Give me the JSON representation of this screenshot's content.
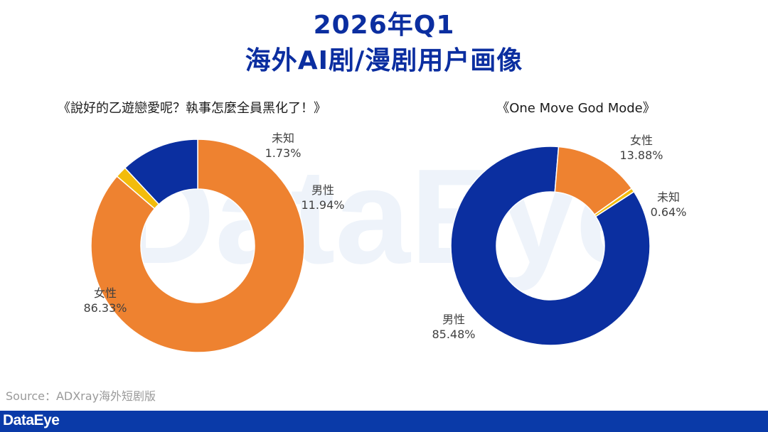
{
  "header": {
    "title_line1": "2026年Q1",
    "title_line2": "海外AI剧/漫剧用户画像"
  },
  "source_text": "Source：ADXray海外短剧版",
  "footer": {
    "logo": "DataEye",
    "color": "#0a3aa8"
  },
  "watermark": "DataEye",
  "colors": {
    "female": "#ee8230",
    "male": "#0b2fa0",
    "unknown": "#f3bc0b",
    "title": "#0b2ea0"
  },
  "chart_data": [
    {
      "type": "pie",
      "title": "《說好的乙遊戀愛呢？執事怎麼全員黑化了！》",
      "donut": true,
      "slices": [
        {
          "label": "女性",
          "value": 86.33,
          "value_label": "86.33%",
          "color": "#ee8230"
        },
        {
          "label": "未知",
          "value": 1.73,
          "value_label": "1.73%",
          "color": "#f3bc0b"
        },
        {
          "label": "男性",
          "value": 11.94,
          "value_label": "11.94%",
          "color": "#0b2fa0"
        }
      ]
    },
    {
      "type": "pie",
      "title": "《One Move God Mode》",
      "donut": true,
      "slices": [
        {
          "label": "男性",
          "value": 85.48,
          "value_label": "85.48%",
          "color": "#0b2fa0"
        },
        {
          "label": "女性",
          "value": 13.88,
          "value_label": "13.88%",
          "color": "#ee8230"
        },
        {
          "label": "未知",
          "value": 0.64,
          "value_label": "0.64%",
          "color": "#f3bc0b"
        }
      ]
    }
  ]
}
